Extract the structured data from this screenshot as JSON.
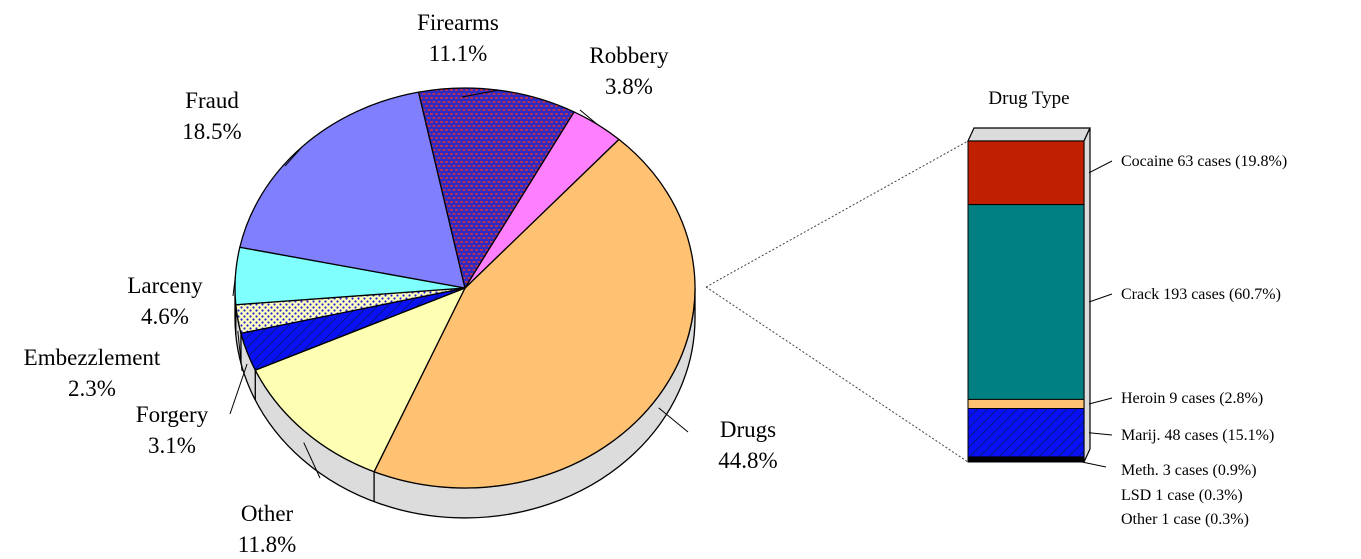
{
  "chart_data": [
    {
      "type": "pie",
      "slices": [
        {
          "label": "Drugs",
          "value": 44.8,
          "value_label": "44.8%",
          "color": "#FFC172",
          "pattern": "none"
        },
        {
          "label": "Other",
          "value": 11.8,
          "value_label": "11.8%",
          "color": "#FFFFB3",
          "pattern": "none"
        },
        {
          "label": "Forgery",
          "value": 3.1,
          "value_label": "3.1%",
          "color": "#0A10F5",
          "pattern": "blue-diagonal-hatch"
        },
        {
          "label": "Embezzlement",
          "value": 2.3,
          "value_label": "2.3%",
          "color": "#FFFFB3",
          "pattern": "blue-dots"
        },
        {
          "label": "Larceny",
          "value": 4.6,
          "value_label": "4.6%",
          "color": "#80FFFF",
          "pattern": "none"
        },
        {
          "label": "Fraud",
          "value": 18.5,
          "value_label": "18.5%",
          "color": "#8080FF",
          "pattern": "none"
        },
        {
          "label": "Firearms",
          "value": 11.1,
          "value_label": "11.1%",
          "color": "#2B2BC8",
          "pattern": "red-brick"
        },
        {
          "label": "Robbery",
          "value": 3.8,
          "value_label": "3.8%",
          "color": "#FF80FF",
          "pattern": "none"
        }
      ],
      "exploded_detail_of": "Drugs"
    },
    {
      "type": "bar",
      "stacked": true,
      "title": "Drug Type",
      "segments": [
        {
          "name": "Cocaine",
          "cases": 63,
          "percent": 19.8,
          "label": "Cocaine 63 cases (19.8%)",
          "color": "#C02000",
          "pattern": "none"
        },
        {
          "name": "Crack",
          "cases": 193,
          "percent": 60.7,
          "label": "Crack 193 cases (60.7%)",
          "color": "#008080",
          "pattern": "none"
        },
        {
          "name": "Heroin",
          "cases": 9,
          "percent": 2.8,
          "label": "Heroin 9 cases (2.8%)",
          "color": "#FFC172",
          "pattern": "none"
        },
        {
          "name": "Marij.",
          "cases": 48,
          "percent": 15.1,
          "label": "Marij. 48 cases (15.1%)",
          "color": "#0A10F5",
          "pattern": "blue-diagonal-hatch"
        },
        {
          "name": "Meth.",
          "cases": 3,
          "percent": 0.9,
          "label": "Meth. 3 cases (0.9%)",
          "color": "#000000",
          "pattern": "none"
        },
        {
          "name": "LSD",
          "cases": 1,
          "percent": 0.3,
          "label": "LSD 1 case (0.3%)",
          "color": "#000000",
          "pattern": "none"
        },
        {
          "name": "Other",
          "cases": 1,
          "percent": 0.3,
          "label": "Other 1 case (0.3%)",
          "color": "#000000",
          "pattern": "none"
        }
      ]
    }
  ]
}
